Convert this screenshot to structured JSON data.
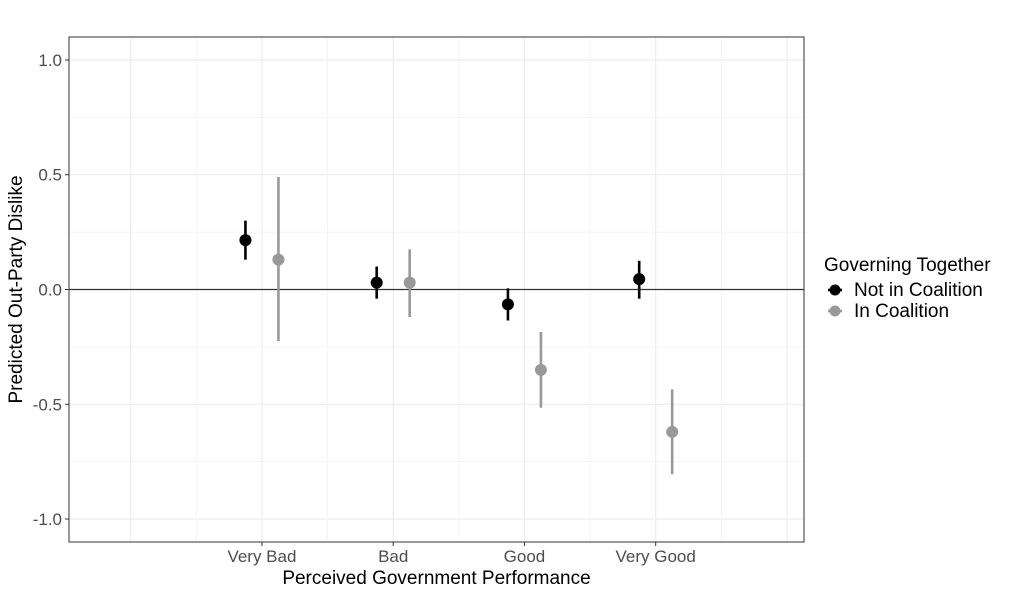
{
  "chart_data": {
    "type": "scatter",
    "title": "",
    "xlabel": "Perceived Government Performance",
    "ylabel": "Predicted Out-Party Dislike",
    "categories": [
      "Very Bad",
      "Bad",
      "Good",
      "Very Good"
    ],
    "ylim": [
      -1.1,
      1.1
    ],
    "yticks": [
      "1.0",
      "0.5",
      "0.0",
      "-0.5",
      "-1.0"
    ],
    "ytick_values": [
      1.0,
      0.5,
      0.0,
      -0.5,
      -1.0
    ],
    "reference_line": 0.0,
    "grid": true,
    "legend": {
      "title": "Governing Together",
      "placement": "right"
    },
    "series": [
      {
        "name": "Not in Coalition",
        "color": "#000000",
        "values": [
          0.215,
          0.03,
          -0.065,
          0.045
        ],
        "lower": [
          0.13,
          -0.04,
          -0.135,
          -0.04
        ],
        "upper": [
          0.3,
          0.1,
          0.005,
          0.125
        ]
      },
      {
        "name": "In Coalition",
        "color": "#999999",
        "values": [
          0.13,
          0.03,
          -0.35,
          -0.62
        ],
        "lower": [
          -0.225,
          -0.12,
          -0.515,
          -0.805
        ],
        "upper": [
          0.49,
          0.175,
          -0.185,
          -0.435
        ]
      }
    ]
  }
}
